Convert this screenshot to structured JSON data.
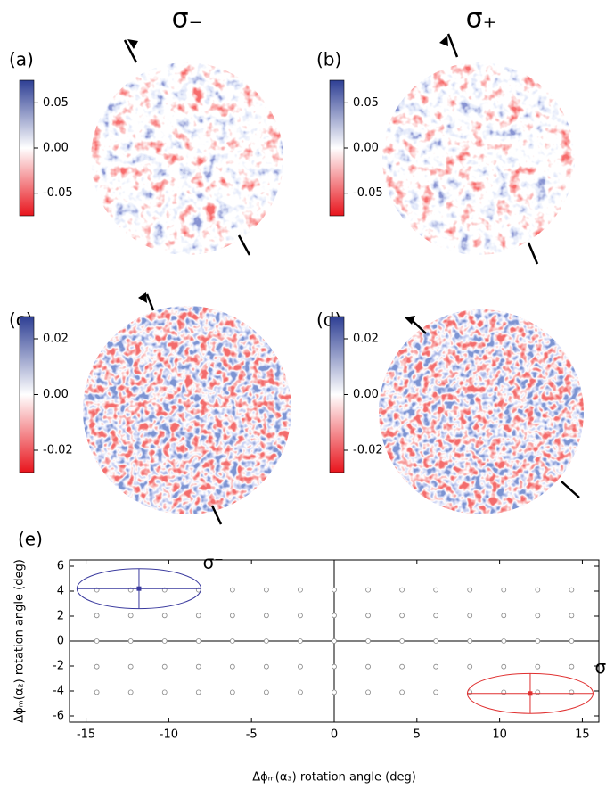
{
  "columns": [
    "σ₋",
    "σ₊"
  ],
  "panels": [
    {
      "label": "(a)",
      "clim": [
        -0.075,
        0.075
      ],
      "ticks": [
        0.05,
        {
          "value": 0,
          "label": "0.00"
        },
        -0.05
      ]
    },
    {
      "label": "(b)",
      "clim": [
        -0.075,
        0.075
      ],
      "ticks": [
        0.05,
        {
          "value": 0,
          "label": "0.00"
        },
        -0.05
      ]
    },
    {
      "label": "(c)",
      "clim": [
        -0.028,
        0.028
      ],
      "ticks": [
        0.02,
        {
          "value": 0,
          "label": "0.00"
        },
        -0.02
      ]
    },
    {
      "label": "(d)",
      "clim": [
        -0.028,
        0.028
      ],
      "ticks": [
        0.02,
        {
          "value": 0,
          "label": "0.00"
        },
        -0.02
      ]
    }
  ],
  "chart_data": {
    "type": "scatter",
    "label": "(e)",
    "xlabel": "Δϕₘ(α₃)  rotation angle (deg)",
    "ylabel": "Δϕₘ(α₂)  rotation angle (deg)",
    "x": [
      -14.35,
      -12.3,
      -10.25,
      -8.2,
      -6.15,
      -4.1,
      -2.05,
      0,
      2.05,
      4.1,
      6.15,
      8.2,
      10.25,
      12.3,
      14.35,
      -14.35,
      -12.3,
      -10.25,
      -8.2,
      -6.15,
      -4.1,
      -2.05,
      0,
      2.05,
      4.1,
      6.15,
      8.2,
      10.25,
      12.3,
      14.35,
      -14.35,
      -12.3,
      -10.25,
      -8.2,
      -6.15,
      -4.1,
      -2.05,
      0,
      2.05,
      4.1,
      6.15,
      8.2,
      10.25,
      12.3,
      14.35,
      -14.35,
      -12.3,
      -10.25,
      -8.2,
      -6.15,
      -4.1,
      -2.05,
      0,
      2.05,
      4.1,
      6.15,
      8.2,
      10.25,
      12.3,
      14.35,
      -14.35,
      -12.3,
      -10.25,
      -8.2,
      -6.15,
      -4.1,
      -2.05,
      0,
      2.05,
      4.1,
      6.15,
      8.2,
      10.25,
      12.3,
      14.35
    ],
    "y": [
      4.1,
      4.1,
      4.1,
      4.1,
      4.1,
      4.1,
      4.1,
      4.1,
      4.1,
      4.1,
      4.1,
      4.1,
      4.1,
      4.1,
      4.1,
      2.05,
      2.05,
      2.05,
      2.05,
      2.05,
      2.05,
      2.05,
      2.05,
      2.05,
      2.05,
      2.05,
      2.05,
      2.05,
      2.05,
      2.05,
      0,
      0,
      0,
      0,
      0,
      0,
      0,
      0,
      0,
      0,
      0,
      0,
      0,
      0,
      0,
      -2.05,
      -2.05,
      -2.05,
      -2.05,
      -2.05,
      -2.05,
      -2.05,
      -2.05,
      -2.05,
      -2.05,
      -2.05,
      -2.05,
      -2.05,
      -2.05,
      -2.05,
      -4.1,
      -4.1,
      -4.1,
      -4.1,
      -4.1,
      -4.1,
      -4.1,
      -4.1,
      -4.1,
      -4.1,
      -4.1,
      -4.1,
      -4.1,
      -4.1,
      -4.1
    ],
    "marker_color": "#888888",
    "ellipses": [
      {
        "name": "σ⁻",
        "color": "#3a3a9e",
        "x": -11.8,
        "y": 4.2,
        "x_error": 3.75,
        "y_error": 1.6
      },
      {
        "name": "σ⁺",
        "color": "#e03030",
        "x": 11.85,
        "y": -4.2,
        "x_error": 3.8,
        "y_error": 1.6
      }
    ],
    "xlim": [
      -16,
      16
    ],
    "ylim": [
      -6.5,
      6.5
    ],
    "xticks": [
      -15,
      -10,
      -5,
      0,
      5,
      10,
      15
    ],
    "yticks": [
      -6,
      -4,
      -2,
      0,
      2,
      4,
      6
    ],
    "zero_lines": true
  }
}
